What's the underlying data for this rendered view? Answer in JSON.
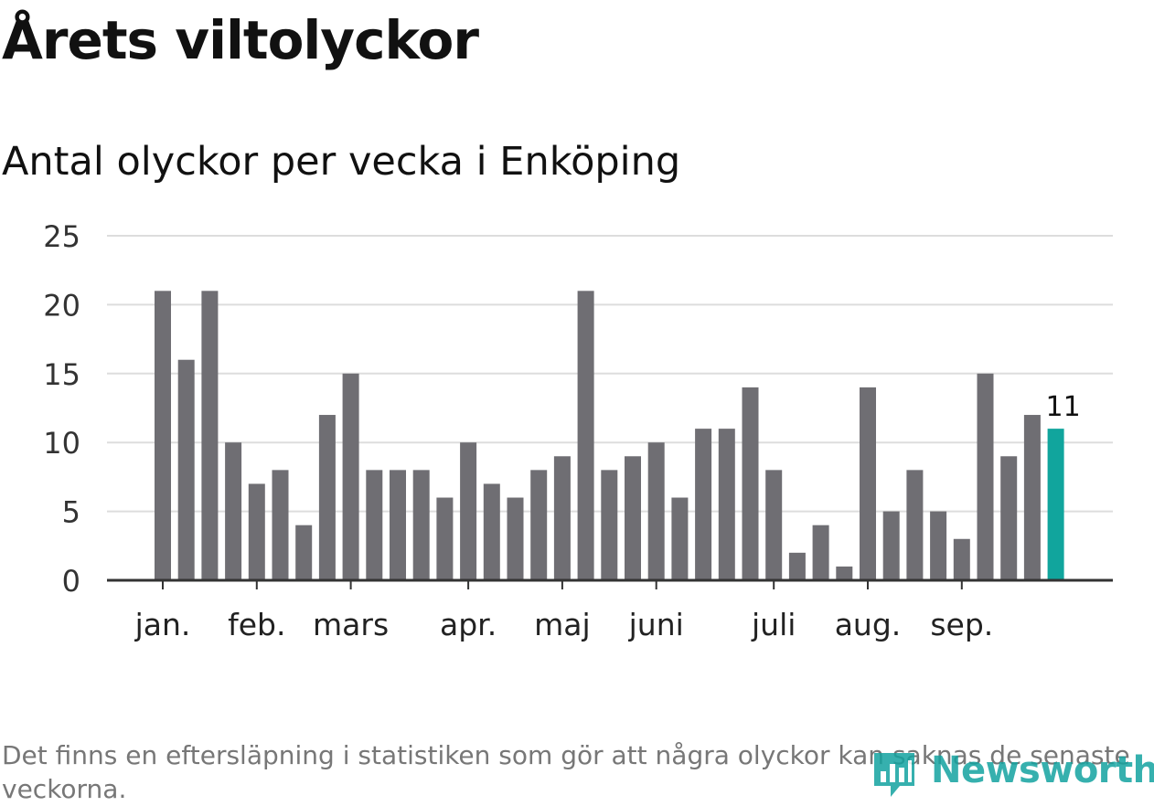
{
  "title": "Årets viltolyckor",
  "subtitle": "Antal olyckor per vecka i Enköping",
  "footnote": "Det finns en eftersläpning i statistiken som gör att några olyckor kan saknas de senaste veckorna.",
  "brand": {
    "name": "Newsworthy",
    "color": "#14a3a0",
    "icon": "newsworthy-logo-icon"
  },
  "colors": {
    "bar": "#6f6e73",
    "highlight": "#11a59d",
    "grid": "#dddddd",
    "axis": "#333333"
  },
  "chart_data": {
    "type": "bar",
    "title": "Antal olyckor per vecka i Enköping",
    "xlabel": "",
    "ylabel": "",
    "ylim": [
      0,
      25
    ],
    "yticks": [
      0,
      5,
      10,
      15,
      20,
      25
    ],
    "grid": true,
    "values": [
      21,
      16,
      21,
      10,
      7,
      8,
      4,
      12,
      15,
      8,
      8,
      8,
      6,
      10,
      7,
      6,
      8,
      9,
      21,
      8,
      9,
      10,
      6,
      11,
      11,
      14,
      8,
      2,
      4,
      1,
      14,
      5,
      8,
      5,
      3,
      15,
      9,
      12,
      11
    ],
    "month_labels": [
      {
        "label": "jan.",
        "bar_index": 0
      },
      {
        "label": "feb.",
        "bar_index": 4
      },
      {
        "label": "mars",
        "bar_index": 8
      },
      {
        "label": "apr.",
        "bar_index": 13
      },
      {
        "label": "maj",
        "bar_index": 17
      },
      {
        "label": "juni",
        "bar_index": 21
      },
      {
        "label": "juli",
        "bar_index": 26
      },
      {
        "label": "aug.",
        "bar_index": 30
      },
      {
        "label": "sep.",
        "bar_index": 34
      }
    ],
    "highlight_index": 38,
    "highlight_label": "11"
  }
}
